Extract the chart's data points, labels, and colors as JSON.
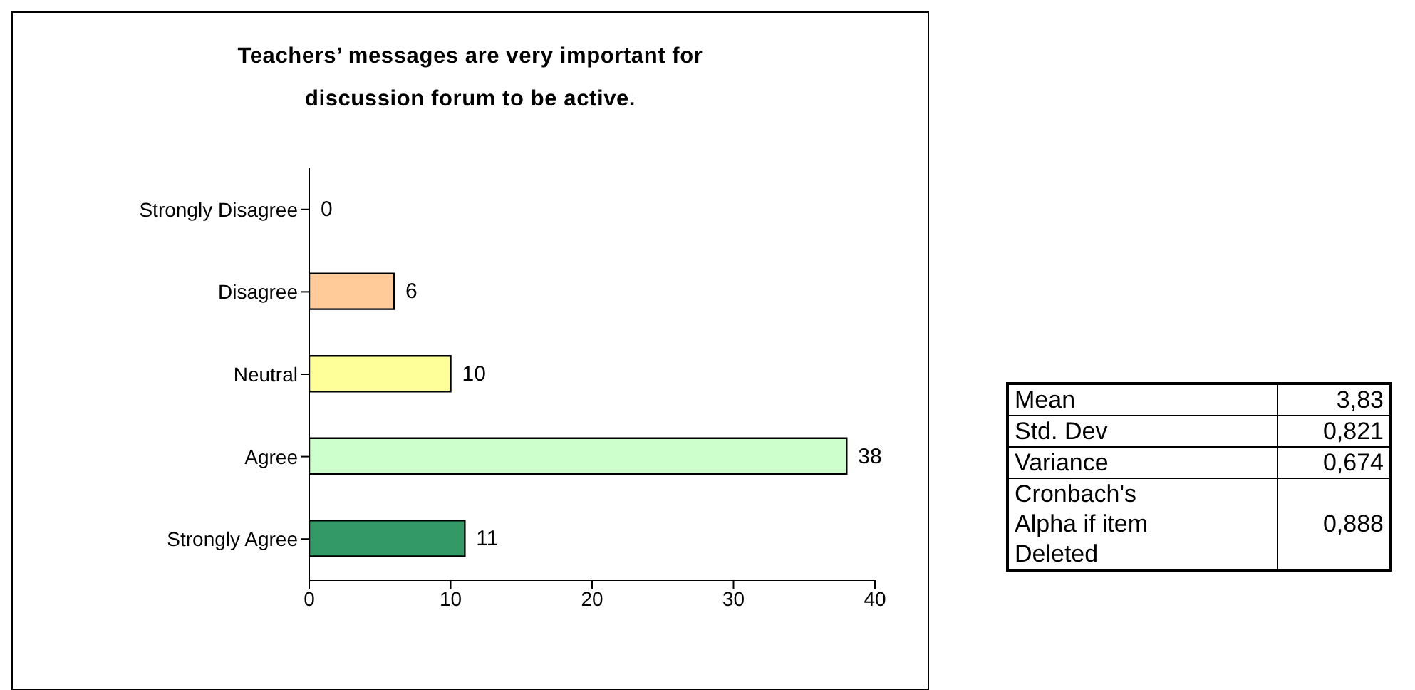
{
  "chart_data": [
    {
      "type": "bar",
      "orientation": "horizontal",
      "title": "Teachers’ messages are very important for discussion forum to be active.",
      "categories": [
        "Strongly Disagree",
        "Disagree",
        "Neutral",
        "Agree",
        "Strongly Agree"
      ],
      "values": [
        0,
        6,
        10,
        38,
        11
      ],
      "colors": [
        "#ffffff",
        "#ffcc99",
        "#ffff99",
        "#ccffcc",
        "#339966"
      ],
      "xlim": [
        0,
        40
      ],
      "xticks": [
        0,
        10,
        20,
        30,
        40
      ],
      "data_labels": true
    },
    {
      "type": "other",
      "annotations": [
        "Mean",
        "3,83",
        "Std. Dev",
        "0,821",
        "Variance",
        "0,674",
        "Cronbach's Alpha if item Deleted",
        "0,888"
      ]
    }
  ]
}
